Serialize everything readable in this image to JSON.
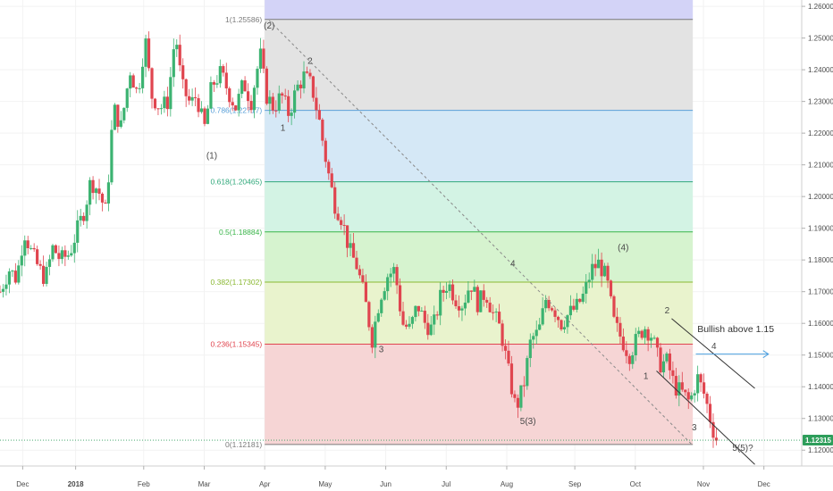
{
  "chart_data": {
    "type": "candlestick",
    "instrument_last_price": "1.12315",
    "colors": {
      "up": "#3cb371",
      "down": "#e0454f",
      "axis_text": "#4a4a4a",
      "price_badge": "#2e9e5b",
      "grid": "#f2f2f2"
    },
    "y_axis": {
      "range": [
        1.115,
        1.262
      ],
      "ticks": [
        "1.26000",
        "1.25000",
        "1.24000",
        "1.23000",
        "1.22000",
        "1.21000",
        "1.20000",
        "1.19000",
        "1.18000",
        "1.17000",
        "1.16000",
        "1.15000",
        "1.14000",
        "1.13000",
        "1.12000"
      ],
      "tick_values": [
        1.26,
        1.25,
        1.24,
        1.23,
        1.22,
        1.21,
        1.2,
        1.19,
        1.18,
        1.17,
        1.16,
        1.15,
        1.14,
        1.13,
        1.12
      ]
    },
    "x_axis": {
      "ticks": [
        {
          "label": "Dec",
          "t": 1.5
        },
        {
          "label": "2018",
          "t": 5.0,
          "bold": true
        },
        {
          "label": "Feb",
          "t": 9.5
        },
        {
          "label": "Mar",
          "t": 13.5
        },
        {
          "label": "Apr",
          "t": 17.5
        },
        {
          "label": "May",
          "t": 21.5
        },
        {
          "label": "Jun",
          "t": 25.5
        },
        {
          "label": "Jul",
          "t": 29.5
        },
        {
          "label": "Aug",
          "t": 33.5
        },
        {
          "label": "Sep",
          "t": 38.0
        },
        {
          "label": "Oct",
          "t": 42.0
        },
        {
          "label": "Nov",
          "t": 46.5
        },
        {
          "label": "Dec",
          "t": 50.5
        }
      ],
      "t_range": [
        0,
        53
      ]
    },
    "price_path": [
      [
        0,
        1.17
      ],
      [
        0.6,
        1.177
      ],
      [
        1.1,
        1.174
      ],
      [
        1.6,
        1.189
      ],
      [
        2.1,
        1.182
      ],
      [
        2.6,
        1.177
      ],
      [
        3.0,
        1.174
      ],
      [
        3.5,
        1.184
      ],
      [
        4.0,
        1.18
      ],
      [
        4.6,
        1.182
      ],
      [
        5.0,
        1.188
      ],
      [
        5.6,
        1.196
      ],
      [
        6.0,
        1.205
      ],
      [
        6.5,
        1.202
      ],
      [
        7.0,
        1.195
      ],
      [
        7.5,
        1.228
      ],
      [
        8.0,
        1.222
      ],
      [
        8.6,
        1.24
      ],
      [
        9.1,
        1.232
      ],
      [
        9.6,
        1.25
      ],
      [
        10.0,
        1.232
      ],
      [
        10.6,
        1.228
      ],
      [
        11.1,
        1.23
      ],
      [
        11.6,
        1.252
      ],
      [
        12.0,
        1.235
      ],
      [
        12.6,
        1.229
      ],
      [
        13.0,
        1.232
      ],
      [
        13.5,
        1.221
      ],
      [
        14.0,
        1.235
      ],
      [
        14.6,
        1.239
      ],
      [
        15.1,
        1.233
      ],
      [
        15.6,
        1.228
      ],
      [
        16.1,
        1.236
      ],
      [
        16.6,
        1.23
      ],
      [
        17.2,
        1.245
      ],
      [
        17.6,
        1.232
      ],
      [
        18.1,
        1.228
      ],
      [
        18.6,
        1.232
      ],
      [
        19.1,
        1.226
      ],
      [
        19.6,
        1.234
      ],
      [
        20.1,
        1.238
      ],
      [
        20.6,
        1.235
      ],
      [
        21.1,
        1.224
      ],
      [
        21.6,
        1.21
      ],
      [
        22.1,
        1.198
      ],
      [
        22.6,
        1.193
      ],
      [
        23.1,
        1.183
      ],
      [
        23.6,
        1.178
      ],
      [
        24.1,
        1.168
      ],
      [
        24.6,
        1.155
      ],
      [
        25.1,
        1.168
      ],
      [
        25.6,
        1.175
      ],
      [
        26.1,
        1.177
      ],
      [
        26.6,
        1.16
      ],
      [
        27.1,
        1.158
      ],
      [
        27.6,
        1.166
      ],
      [
        28.1,
        1.16
      ],
      [
        28.6,
        1.158
      ],
      [
        29.1,
        1.168
      ],
      [
        29.6,
        1.173
      ],
      [
        30.1,
        1.168
      ],
      [
        30.6,
        1.166
      ],
      [
        31.1,
        1.173
      ],
      [
        31.6,
        1.166
      ],
      [
        32.1,
        1.17
      ],
      [
        32.6,
        1.163
      ],
      [
        33.1,
        1.158
      ],
      [
        33.6,
        1.145
      ],
      [
        34.1,
        1.133
      ],
      [
        34.6,
        1.14
      ],
      [
        35.1,
        1.155
      ],
      [
        35.6,
        1.157
      ],
      [
        36.1,
        1.168
      ],
      [
        36.6,
        1.165
      ],
      [
        37.1,
        1.16
      ],
      [
        37.6,
        1.163
      ],
      [
        38.1,
        1.165
      ],
      [
        38.6,
        1.169
      ],
      [
        39.1,
        1.177
      ],
      [
        39.6,
        1.179
      ],
      [
        40.1,
        1.174
      ],
      [
        40.6,
        1.16
      ],
      [
        41.1,
        1.155
      ],
      [
        41.6,
        1.15
      ],
      [
        42.1,
        1.155
      ],
      [
        42.6,
        1.159
      ],
      [
        43.1,
        1.156
      ],
      [
        43.6,
        1.147
      ],
      [
        44.1,
        1.148
      ],
      [
        44.6,
        1.14
      ],
      [
        45.1,
        1.138
      ],
      [
        45.6,
        1.135
      ],
      [
        46.1,
        1.143
      ],
      [
        46.6,
        1.137
      ],
      [
        47.1,
        1.127
      ],
      [
        47.4,
        1.123
      ]
    ],
    "fibonacci": {
      "t_start": 17.5,
      "t_end": 45.8,
      "levels": [
        {
          "label": "1(1.25586)",
          "value": 1.25586,
          "color": "#7a7a7a",
          "fill_above": "#d3d3f7"
        },
        {
          "label": "0.786(1.22717)",
          "value": 1.22717,
          "color": "#5aa0d8",
          "fill_above": "#e3e3e3"
        },
        {
          "label": "0.618(1.20465)",
          "value": 1.20465,
          "color": "#2fa87a",
          "fill_above": "#d5e8f6"
        },
        {
          "label": "0.5(1.18884)",
          "value": 1.18884,
          "color": "#3ab54a",
          "fill_above": "#d3f3e4"
        },
        {
          "label": "0.382(1.17302)",
          "value": 1.17302,
          "color": "#8ab832",
          "fill_above": "#d6f3cf"
        },
        {
          "label": "0.236(1.15345)",
          "value": 1.15345,
          "color": "#e0454f",
          "fill_above": "#e9f3cd"
        },
        {
          "label": "0(1.12181)",
          "value": 1.12181,
          "color": "#7a7a7a",
          "fill_above": "#f6d5d5"
        }
      ]
    },
    "trendline_dashed": [
      [
        17.8,
        1.2555
      ],
      [
        45.8,
        1.1215
      ]
    ],
    "channel_upper": [
      [
        44.4,
        1.1615
      ],
      [
        49.9,
        1.1395
      ]
    ],
    "channel_lower": [
      [
        43.4,
        1.145
      ],
      [
        49.9,
        1.1155
      ]
    ],
    "blue_arrow": [
      [
        46.0,
        1.1503
      ],
      [
        50.8,
        1.1503
      ]
    ],
    "wave_labels": [
      {
        "text": "(1)",
        "t": 14.0,
        "v": 1.212
      },
      {
        "text": "(2)",
        "t": 17.8,
        "v": 1.253
      },
      {
        "text": "1",
        "t": 18.7,
        "v": 1.2207
      },
      {
        "text": "2",
        "t": 20.5,
        "v": 1.2418
      },
      {
        "text": "3",
        "t": 25.2,
        "v": 1.1509
      },
      {
        "text": "4",
        "t": 33.9,
        "v": 1.178
      },
      {
        "text": "5(3)",
        "t": 34.9,
        "v": 1.1282
      },
      {
        "text": "(4)",
        "t": 41.2,
        "v": 1.183
      },
      {
        "text": "2",
        "t": 44.1,
        "v": 1.1632
      },
      {
        "text": "1",
        "t": 42.7,
        "v": 1.1425
      },
      {
        "text": "4",
        "t": 47.2,
        "v": 1.1519
      },
      {
        "text": "3",
        "t": 45.9,
        "v": 1.1262
      },
      {
        "text": "5(5)?",
        "t": 49.1,
        "v": 1.1198
      }
    ],
    "annotations": [
      {
        "text": "Bullish above 1.15",
        "t": 46.1,
        "v": 1.1573
      }
    ]
  }
}
